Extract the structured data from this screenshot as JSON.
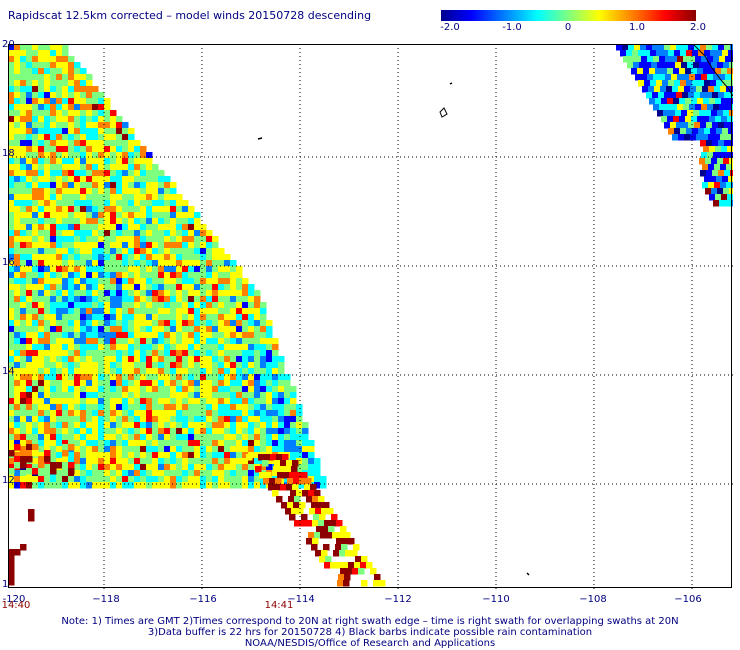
{
  "title": "Rapidscat 12.5km corrected – model winds 20150728 descending",
  "colorbar": {
    "ticks": [
      "-2.0",
      "-1.0",
      "0",
      "1.0",
      "2.0"
    ],
    "colors": [
      "#00008f",
      "#0000ff",
      "#0080ff",
      "#00ffff",
      "#7fff7f",
      "#ffff00",
      "#ff8000",
      "#ff0000",
      "#8b0000"
    ]
  },
  "map": {
    "lat_labels": [
      "20",
      "18",
      "16",
      "14",
      "12",
      "1"
    ],
    "lon_labels": [
      "-120",
      "−118",
      "−116",
      "−114",
      "−112",
      "−110",
      "−108",
      "−106"
    ],
    "time_labels": [
      "14:40",
      "14:41"
    ],
    "lat_range": [
      10,
      20
    ],
    "lon_range": [
      -120,
      -105.2
    ]
  },
  "notes": {
    "line1": "Note: 1) Times are GMT 2)Times correspond to 20N at right swath edge – time is right swath for overlapping swaths at 20N",
    "line2": "3)Data buffer is 22 hrs for 20150728 4) Black barbs indicate possible rain contamination",
    "line3": "NOAA/NESDIS/Office of Research and Applications"
  }
}
